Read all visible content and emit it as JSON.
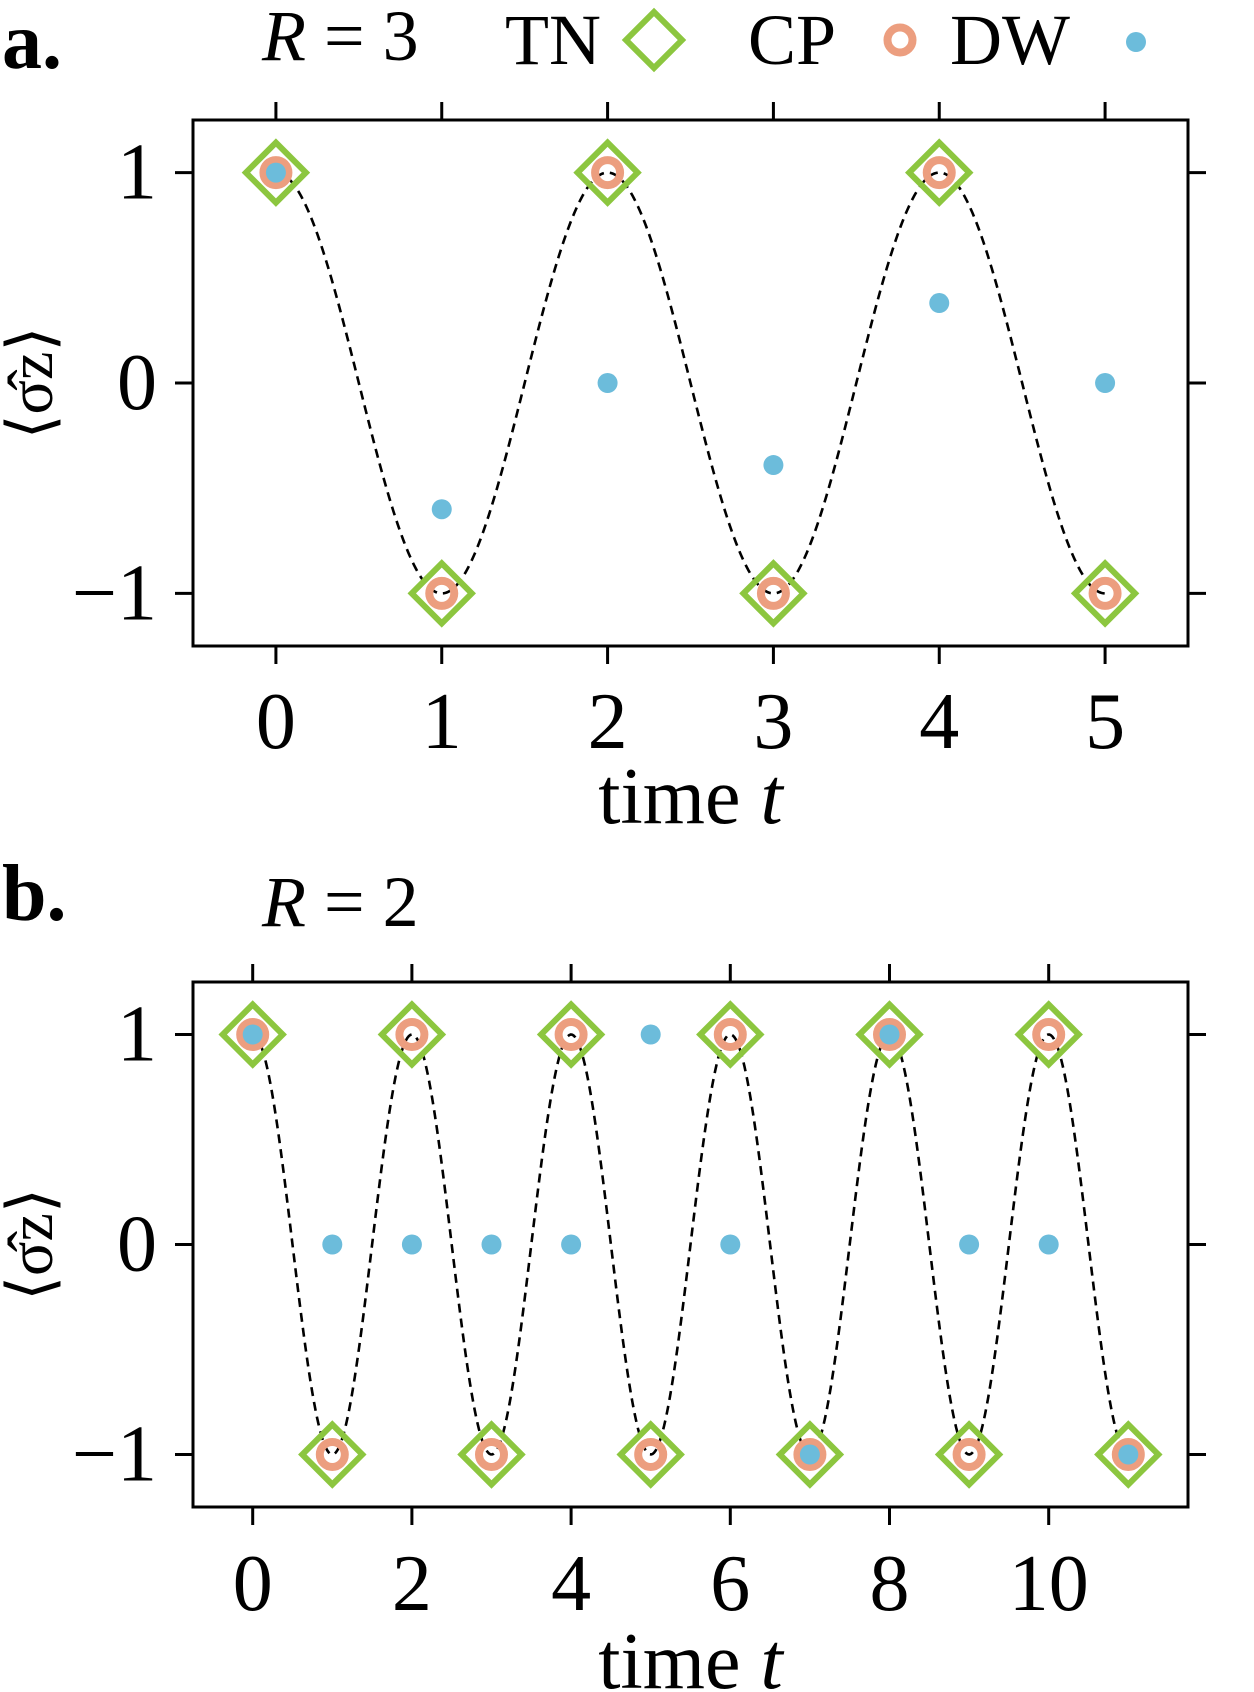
{
  "legend": {
    "entries": [
      "TN",
      "CP",
      "DW"
    ]
  },
  "colors": {
    "TN": "#8cc63f",
    "CP": "#ec9e7f",
    "DW": "#6cbcdb",
    "curve": "#000000",
    "axes": "#000000"
  },
  "chart_data": [
    {
      "type": "scatter",
      "panel_label": "a.",
      "title_param": "R",
      "title_value": "3",
      "xlabel": "time",
      "xlabel_var": "t",
      "ylabel": "⟨σ̂z⟩",
      "xlim": [
        -0.5,
        5.5
      ],
      "ylim": [
        -1.25,
        1.25
      ],
      "xticks": [
        0,
        1,
        2,
        3,
        4,
        5
      ],
      "xtick_labels": [
        "0",
        "1",
        "2",
        "3",
        "4",
        "5"
      ],
      "yticks": [
        1,
        0,
        -1
      ],
      "ytick_labels": [
        "1",
        "0",
        "−1"
      ],
      "curve": {
        "style": "dashed",
        "period": 2
      },
      "series": [
        {
          "name": "TN",
          "marker": "diamond",
          "x": [
            0,
            1,
            2,
            3,
            4,
            5
          ],
          "y": [
            1,
            -1,
            1,
            -1,
            1,
            -1
          ]
        },
        {
          "name": "CP",
          "marker": "ring",
          "x": [
            0,
            1,
            2,
            3,
            4,
            5
          ],
          "y": [
            1,
            -1,
            1,
            -1,
            1,
            -1
          ]
        },
        {
          "name": "DW",
          "marker": "dot",
          "x": [
            0,
            1,
            2,
            3,
            4,
            5
          ],
          "y": [
            1,
            -0.6,
            0,
            -0.39,
            0.38,
            0
          ]
        }
      ]
    },
    {
      "type": "scatter",
      "panel_label": "b.",
      "title_param": "R",
      "title_value": "2",
      "xlabel": "time",
      "xlabel_var": "t",
      "ylabel": "⟨σ̂z⟩",
      "xlim": [
        -0.75,
        11.75
      ],
      "ylim": [
        -1.25,
        1.25
      ],
      "xticks": [
        0,
        2,
        4,
        6,
        8,
        10
      ],
      "xtick_labels": [
        "0",
        "2",
        "4",
        "6",
        "8",
        "10"
      ],
      "yticks": [
        1,
        0,
        -1
      ],
      "ytick_labels": [
        "1",
        "0",
        "−1"
      ],
      "curve": {
        "style": "dashed",
        "period": 2
      },
      "series": [
        {
          "name": "TN",
          "marker": "diamond",
          "x": [
            0,
            1,
            2,
            3,
            4,
            5,
            6,
            7,
            8,
            9,
            10,
            11
          ],
          "y": [
            1,
            -1,
            1,
            -1,
            1,
            -1,
            1,
            -1,
            1,
            -1,
            1,
            -1
          ]
        },
        {
          "name": "CP",
          "marker": "ring",
          "x": [
            0,
            1,
            2,
            3,
            4,
            5,
            6,
            7,
            8,
            9,
            10,
            11
          ],
          "y": [
            1,
            -1,
            1,
            -1,
            1,
            -1,
            1,
            -1,
            1,
            -1,
            1,
            -1
          ]
        },
        {
          "name": "DW",
          "marker": "dot",
          "x": [
            0,
            1,
            2,
            3,
            4,
            5,
            6,
            7,
            8,
            9,
            10,
            11
          ],
          "y": [
            1,
            0,
            0,
            0,
            0,
            1,
            0,
            -1,
            1,
            0,
            0,
            -1
          ]
        }
      ]
    }
  ]
}
